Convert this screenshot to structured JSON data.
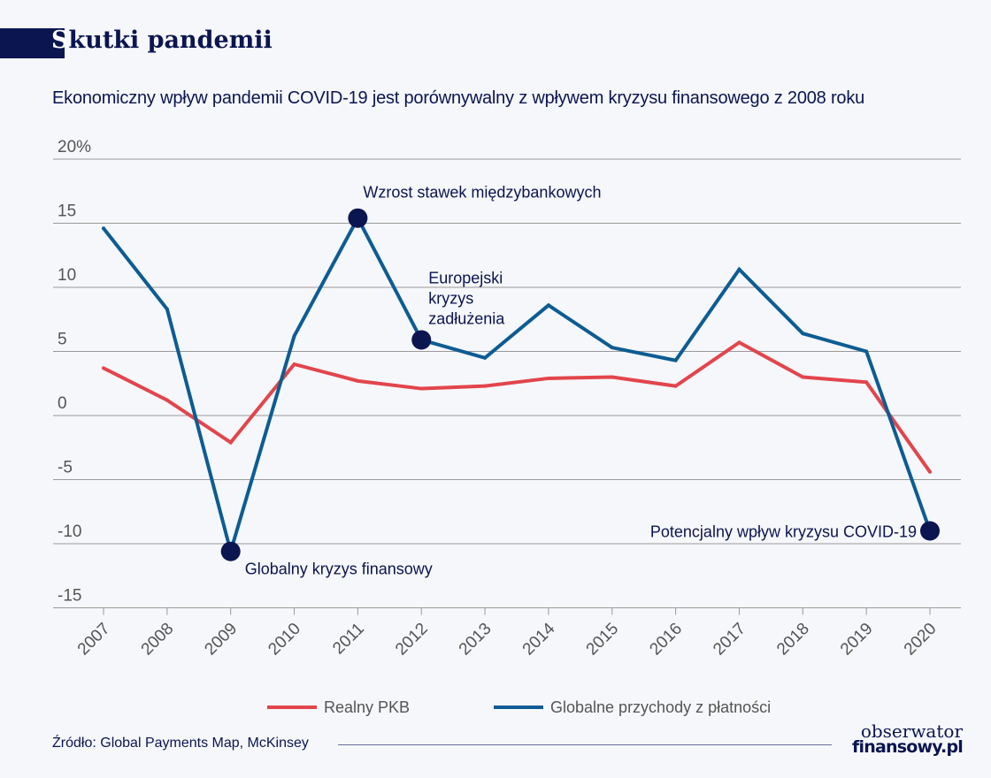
{
  "header": {
    "title_first_letter": "S",
    "title_rest": "kutki pandemii",
    "subtitle": "Ekonomiczny wpływ pandemii COVID-19 jest porównywalny z wpływem kryzysu finansowego z 2008 roku"
  },
  "footer": {
    "source": "Źródło: Global Payments Map, McKinsey",
    "logo_line1": "obserwator",
    "logo_line2": "finansowy.pl"
  },
  "colors": {
    "navy": "#0b1550",
    "blue": "#0d5c93",
    "red": "#e2454c",
    "grid": "#9a9a9a"
  },
  "chart_data": {
    "type": "line",
    "title": "",
    "xlabel": "",
    "ylabel": "",
    "ylim": [
      -15,
      20
    ],
    "yticks": [
      {
        "v": 20,
        "label": "20%"
      },
      {
        "v": 15,
        "label": "15"
      },
      {
        "v": 10,
        "label": "10"
      },
      {
        "v": 5,
        "label": "5"
      },
      {
        "v": 0,
        "label": "0"
      },
      {
        "v": -5,
        "label": "-5"
      },
      {
        "v": -10,
        "label": "-10"
      },
      {
        "v": -15,
        "label": "-15"
      }
    ],
    "grid": true,
    "legend": "bottom",
    "categories": [
      "2007",
      "2008",
      "2009",
      "2010",
      "2011",
      "2012",
      "2013",
      "2014",
      "2015",
      "2016",
      "2017",
      "2018",
      "2019",
      "2020"
    ],
    "series": [
      {
        "name": "Realny PKB",
        "color": "#e2454c",
        "values": [
          3.7,
          1.2,
          -2.1,
          4.0,
          2.7,
          2.1,
          2.3,
          2.9,
          3.0,
          2.3,
          5.7,
          3.0,
          2.6,
          -4.4
        ]
      },
      {
        "name": "Globalne przychody z płatności",
        "color": "#0d5c93",
        "values": [
          14.6,
          8.3,
          -10.6,
          6.2,
          15.4,
          5.9,
          4.5,
          8.6,
          5.3,
          4.3,
          11.4,
          6.4,
          5.0,
          -9.0
        ]
      }
    ],
    "annotations": [
      {
        "category": "2009",
        "value": -10.6,
        "lines": [
          "Globalny kryzys finansowy"
        ],
        "pos": "below-right"
      },
      {
        "category": "2011",
        "value": 15.4,
        "lines": [
          "Wzrost stawek międzybankowych"
        ],
        "pos": "above-right"
      },
      {
        "category": "2012",
        "value": 5.9,
        "lines": [
          "Europejski",
          "kryzys",
          "zadłużenia"
        ],
        "pos": "above-right"
      },
      {
        "category": "2020",
        "value": -9.0,
        "lines": [
          "Potencjalny wpływ kryzysu COVID-19"
        ],
        "pos": "left"
      }
    ]
  }
}
